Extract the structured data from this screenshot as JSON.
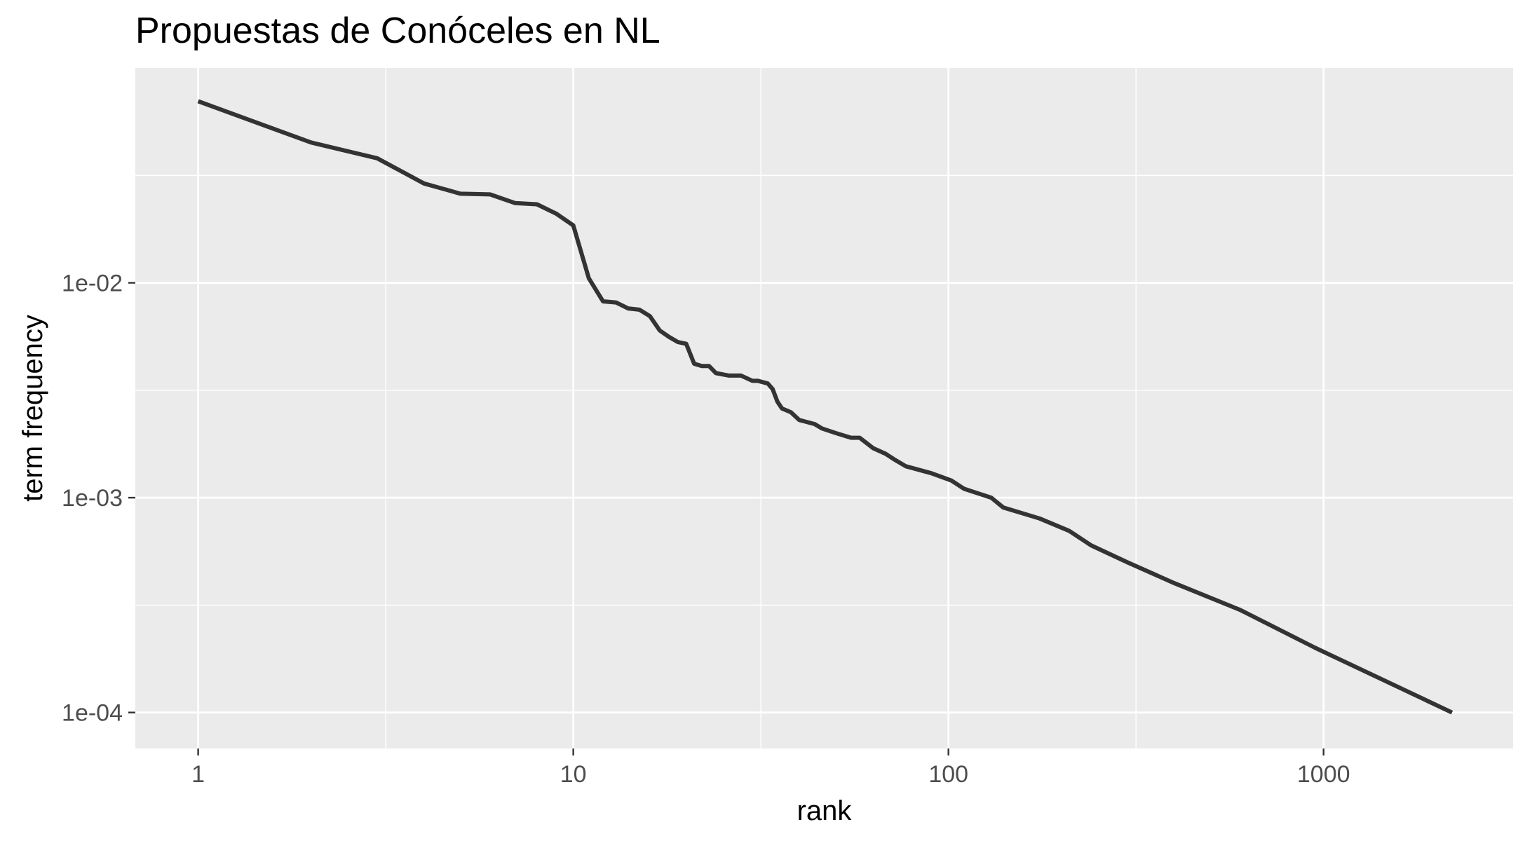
{
  "chart_data": {
    "type": "line",
    "title": "Propuestas de Conóceles en NL",
    "xlabel": "rank",
    "ylabel": "term frequency",
    "xscale": "log10",
    "yscale": "log10",
    "xlim": [
      0.68,
      3200
    ],
    "ylim": [
      6.8e-05,
      0.1
    ],
    "x_ticks": [
      {
        "value": 1,
        "label": "1"
      },
      {
        "value": 10,
        "label": "10"
      },
      {
        "value": 100,
        "label": "100"
      },
      {
        "value": 1000,
        "label": "1000"
      }
    ],
    "y_ticks": [
      {
        "value": 0.01,
        "label": "1e-02"
      },
      {
        "value": 0.001,
        "label": "1e-03"
      },
      {
        "value": 0.0001,
        "label": "1e-04"
      }
    ],
    "grid": true,
    "background": "#ebebeb",
    "gridline_color": "#ffffff",
    "line_color": "#333333",
    "series": [
      {
        "x": [
          1,
          2,
          3,
          4,
          5,
          6,
          7,
          8,
          9,
          10,
          11,
          12,
          13,
          14,
          15,
          16,
          17,
          18,
          19,
          20,
          21,
          22,
          23,
          24,
          26,
          28,
          30,
          31,
          33,
          34,
          35,
          36,
          38,
          40,
          44,
          46,
          50,
          55,
          58,
          63,
          68,
          72,
          77,
          90,
          102,
          110,
          130,
          140,
          175,
          210,
          240,
          300,
          400,
          600,
          950,
          2200
        ],
        "y": [
          0.07,
          0.045,
          0.038,
          0.029,
          0.026,
          0.0258,
          0.0235,
          0.0232,
          0.021,
          0.0185,
          0.0105,
          0.0082,
          0.0081,
          0.0076,
          0.0075,
          0.007,
          0.006,
          0.0056,
          0.0053,
          0.0052,
          0.0042,
          0.0041,
          0.0041,
          0.0038,
          0.0037,
          0.0037,
          0.0035,
          0.0035,
          0.0034,
          0.0032,
          0.0028,
          0.0026,
          0.0025,
          0.0023,
          0.0022,
          0.0021,
          0.002,
          0.0019,
          0.0019,
          0.0017,
          0.0016,
          0.0015,
          0.0014,
          0.0013,
          0.0012,
          0.0011,
          0.001,
          0.0009,
          0.0008,
          0.0007,
          0.0006,
          0.0005,
          0.0004,
          0.0003,
          0.0002,
          0.0001
        ]
      }
    ]
  }
}
